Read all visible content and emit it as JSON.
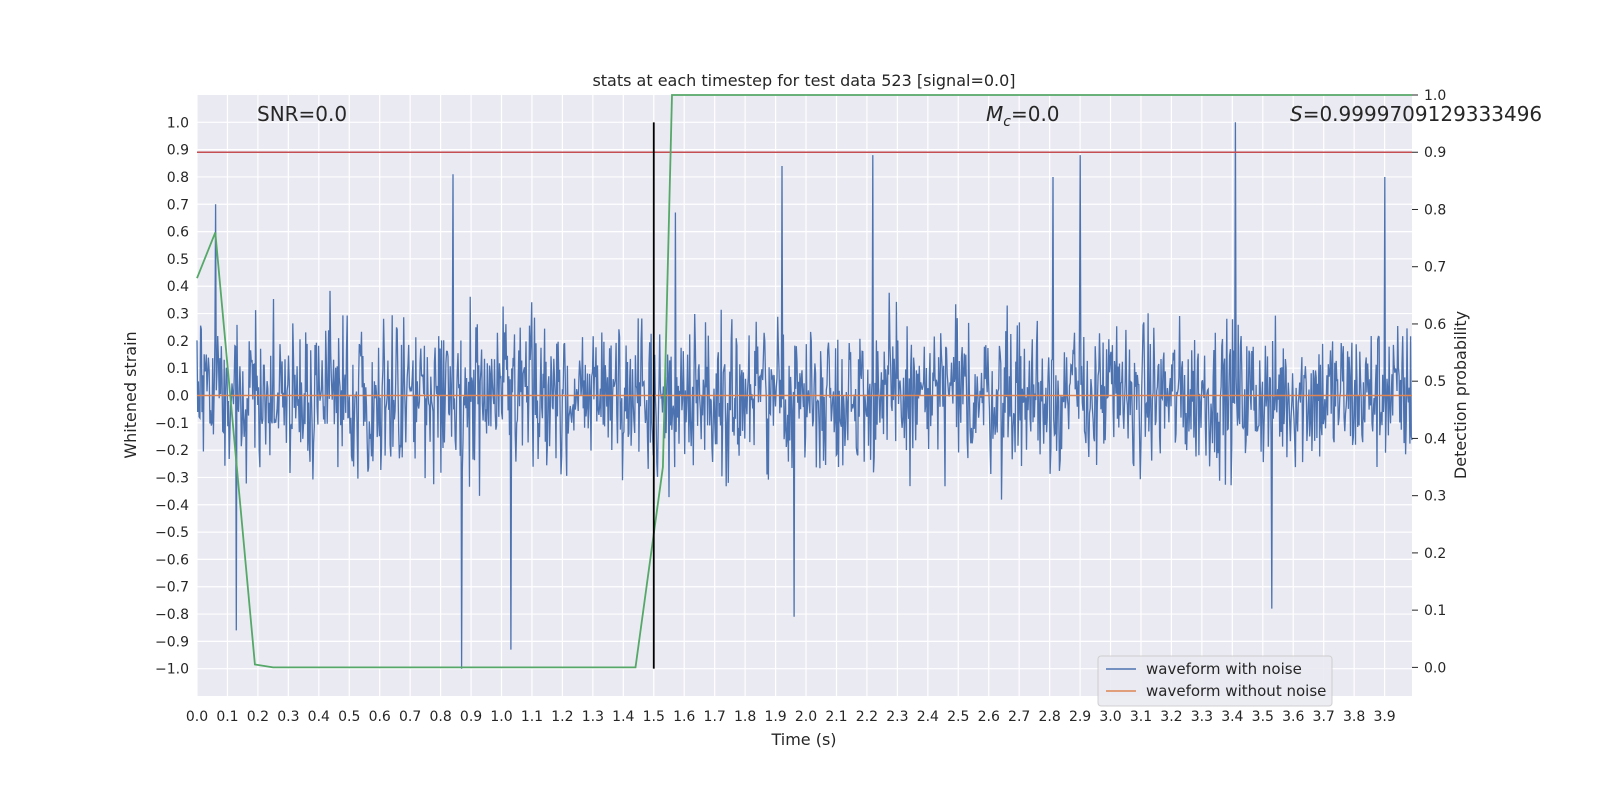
{
  "chart_data": {
    "type": "line",
    "title": "stats at each timestep for test data 523 [signal=0.0]",
    "xlabel": "Time (s)",
    "ylabel": "Whitened strain",
    "y2label": "Detection probability",
    "xlim": [
      0.0,
      3.99
    ],
    "ylim": [
      -1.1,
      1.1
    ],
    "y2lim": [
      -0.05,
      1.0
    ],
    "xticks": [
      0.0,
      0.1,
      0.2,
      0.3,
      0.4,
      0.5,
      0.6,
      0.7,
      0.8,
      0.9,
      1.0,
      1.1,
      1.2,
      1.3,
      1.4,
      1.5,
      1.6,
      1.7,
      1.8,
      1.9,
      2.0,
      2.1,
      2.2,
      2.3,
      2.4,
      2.5,
      2.6,
      2.7,
      2.8,
      2.9,
      3.0,
      3.1,
      3.2,
      3.3,
      3.4,
      3.5,
      3.6,
      3.7,
      3.8,
      3.9
    ],
    "xtick_labels": [
      "0.0",
      "0.1",
      "0.2",
      "0.3",
      "0.4",
      "0.5",
      "0.6",
      "0.7",
      "0.8",
      "0.9",
      "1.0",
      "1.1",
      "1.2",
      "1.3",
      "1.4",
      "1.5",
      "1.6",
      "1.7",
      "1.8",
      "1.9",
      "2.0",
      "2.1",
      "2.2",
      "2.3",
      "2.4",
      "2.5",
      "2.6",
      "2.7",
      "2.8",
      "2.9",
      "3.0",
      "3.1",
      "3.2",
      "3.3",
      "3.4",
      "3.5",
      "3.6",
      "3.7",
      "3.8",
      "3.9"
    ],
    "yticks": [
      1.0,
      0.9,
      0.8,
      0.7,
      0.6,
      0.5,
      0.4,
      0.3,
      0.2,
      0.1,
      0.0,
      -0.1,
      -0.2,
      -0.3,
      -0.4,
      -0.5,
      -0.6,
      -0.7,
      -0.8,
      -0.9,
      -1.0
    ],
    "ytick_labels": [
      "1.0",
      "0.9",
      "0.8",
      "0.7",
      "0.6",
      "0.5",
      "0.4",
      "0.3",
      "0.2",
      "0.1",
      "0.0",
      "−0.1",
      "−0.2",
      "−0.3",
      "−0.4",
      "−0.5",
      "−0.6",
      "−0.7",
      "−0.8",
      "−0.9",
      "−1.0"
    ],
    "y2ticks": [
      1.0,
      0.9,
      0.8,
      0.7,
      0.6,
      0.5,
      0.4,
      0.3,
      0.2,
      0.1,
      0.0
    ],
    "y2tick_labels": [
      "1.0",
      "0.9",
      "0.8",
      "0.7",
      "0.6",
      "0.5",
      "0.4",
      "0.3",
      "0.2",
      "0.1",
      "0.0"
    ],
    "series": [
      {
        "name": "waveform with noise",
        "color": "#4c72b0",
        "description": "dense noise trace, approx uniform random amplitude",
        "amplitude_range": [
          -1.0,
          1.0
        ],
        "spikes": [
          [
            0.06,
            0.7
          ],
          [
            0.84,
            0.81
          ],
          [
            0.87,
            -1.0
          ],
          [
            1.03,
            -0.93
          ],
          [
            1.57,
            0.67
          ],
          [
            1.92,
            0.84
          ],
          [
            2.22,
            0.88
          ],
          [
            2.81,
            0.8
          ],
          [
            2.9,
            0.88
          ],
          [
            3.41,
            1.0
          ],
          [
            3.53,
            -0.78
          ],
          [
            3.9,
            0.8
          ],
          [
            1.96,
            -0.81
          ],
          [
            0.13,
            -0.86
          ]
        ]
      },
      {
        "name": "waveform without noise",
        "color": "#dd8452",
        "x": [
          0.0,
          3.99
        ],
        "y": [
          0.0,
          0.0
        ]
      },
      {
        "name": "detection probability",
        "color": "#55a868",
        "axis": "right",
        "x": [
          0.0,
          0.06,
          0.19,
          0.25,
          1.0,
          1.44,
          1.53,
          1.56,
          3.99
        ],
        "y": [
          0.68,
          0.76,
          0.005,
          0.0,
          0.0,
          0.0,
          0.35,
          1.0,
          1.0
        ]
      }
    ],
    "threshold_line": {
      "value": 0.9,
      "axis": "right",
      "color": "#c44e52"
    },
    "vertical_line": {
      "x": 1.5,
      "color": "#000000"
    },
    "legend": {
      "placement": "lower-right",
      "items": [
        {
          "label": "waveform with noise",
          "color": "#4c72b0"
        },
        {
          "label": "waveform without noise",
          "color": "#dd8452"
        }
      ]
    },
    "annotations": {
      "snr_label": "SNR=0.0",
      "mc_symbol": "M",
      "mc_subscript": "c",
      "mc_value": "=0.0",
      "s_symbol": "S",
      "s_value": "=0.9999709129333496"
    },
    "grid": true,
    "background": "#eaeaf2"
  }
}
